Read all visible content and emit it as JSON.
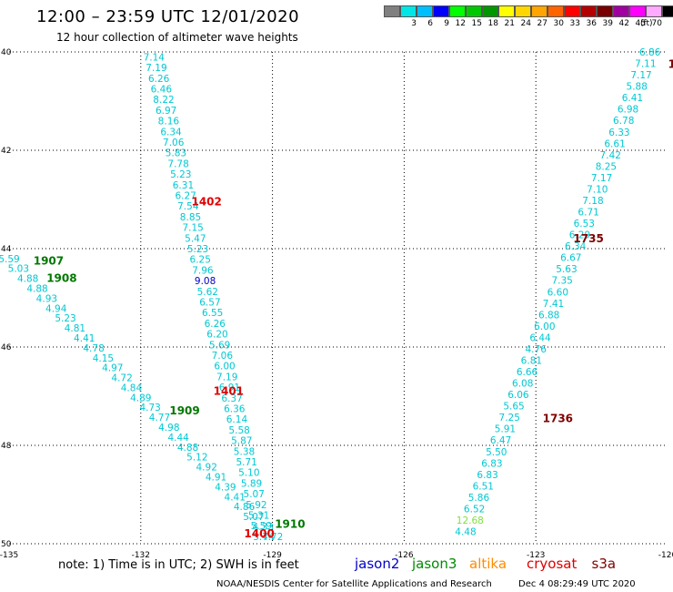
{
  "header": {
    "title": "12:00 – 23:59 UTC 12/01/2020",
    "subtitle": "12 hour collection of altimeter wave heights"
  },
  "legend": {
    "unit": "(ft)",
    "bins": [
      {
        "label": "",
        "color": "#808080"
      },
      {
        "label": "3",
        "color": "#00e5e5"
      },
      {
        "label": "6",
        "color": "#00bfff"
      },
      {
        "label": "9",
        "color": "#0000ff"
      },
      {
        "label": "12",
        "color": "#00ff00"
      },
      {
        "label": "15",
        "color": "#00c800"
      },
      {
        "label": "18",
        "color": "#009600"
      },
      {
        "label": "21",
        "color": "#ffff00"
      },
      {
        "label": "24",
        "color": "#ffd700"
      },
      {
        "label": "27",
        "color": "#ffa500"
      },
      {
        "label": "30",
        "color": "#ff6400"
      },
      {
        "label": "33",
        "color": "#ff0000"
      },
      {
        "label": "36",
        "color": "#b40000"
      },
      {
        "label": "39",
        "color": "#780000"
      },
      {
        "label": "42",
        "color": "#a000a0"
      },
      {
        "label": "45",
        "color": "#ff00ff"
      },
      {
        "label": "70",
        "color": "#ffaaff"
      },
      {
        "label": "",
        "color": "#000000"
      }
    ]
  },
  "axes": {
    "lon_ticks": [
      "-135",
      "-132",
      "-129",
      "-126",
      "-123",
      "-120"
    ],
    "lat_ticks": [
      "40",
      "42",
      "44",
      "46",
      "48",
      "50"
    ]
  },
  "passes": [
    {
      "id": "A",
      "color": "#00c8d2",
      "lon_start": -131.7,
      "lat_start": 40.1,
      "lon_end": -129.2,
      "lat_end": 49.85,
      "values": [
        "7.14",
        "7.19",
        "6.26",
        "6.46",
        "8.22",
        "6.97",
        "8.16",
        "6.34",
        "7.06",
        "5.83",
        "7.78",
        "5.23",
        "6.31",
        "6.27",
        "7.54",
        "8.85",
        "7.15",
        "5.47",
        "5.23",
        "6.25",
        "7.96",
        "9.08",
        "5.62",
        "6.57",
        "6.55",
        "6.26",
        "6.20",
        "5.69",
        "7.06",
        "6.00",
        "7.19",
        "6.91",
        "6.37",
        "6.36",
        "6.14",
        "5.58",
        "5.87",
        "5.38",
        "5.71",
        "5.10",
        "5.89",
        "5.07",
        "5.92",
        "5.31",
        "5.59",
        "5.74"
      ],
      "highlight": {
        "index": 21,
        "color": "#0000c8"
      }
    },
    {
      "id": "B",
      "color": "#00c8d2",
      "lon_start": -135.0,
      "lat_start": 44.2,
      "lon_end": -129.0,
      "lat_end": 49.85,
      "values": [
        "5.59",
        "5.03",
        "4.88",
        "4.88",
        "4.93",
        "4.94",
        "5.23",
        "4.81",
        "4.41",
        "4.78",
        "4.15",
        "4.97",
        "4.72",
        "4.84",
        "4.89",
        "4.73",
        "4.77",
        "4.98",
        "4.44",
        "4.88",
        "5.12",
        "4.92",
        "4.91",
        "4.39",
        "4.41",
        "4.86",
        "5.07",
        "4.33",
        "4.72"
      ]
    },
    {
      "id": "C",
      "color": "#00c8d2",
      "lon_start": -120.4,
      "lat_start": 40.0,
      "lon_end": -124.6,
      "lat_end": 49.75,
      "values": [
        "6.86",
        "7.11",
        "7.17",
        "5.88",
        "6.41",
        "6.98",
        "6.78",
        "6.33",
        "6.61",
        "7.42",
        "8.25",
        "7.17",
        "7.10",
        "7.18",
        "6.71",
        "6.53",
        "6.29",
        "6.34",
        "6.67",
        "5.63",
        "7.35",
        "6.60",
        "7.41",
        "6.88",
        "6.00",
        "6.44",
        "4.76",
        "6.81",
        "6.66",
        "6.08",
        "6.06",
        "5.65",
        "7.25",
        "5.91",
        "6.47",
        "5.50",
        "6.83",
        "6.83",
        "6.51",
        "5.86",
        "6.52",
        "12.68",
        "4.48"
      ],
      "highlight": {
        "index": 41,
        "color": "#80e040"
      }
    }
  ],
  "time_labels": [
    {
      "text": "1402",
      "lon": -130.5,
      "lat": 43.05,
      "color": "#e00000"
    },
    {
      "text": "1401",
      "lon": -130.0,
      "lat": 46.9,
      "color": "#e00000"
    },
    {
      "text": "1400",
      "lon": -129.3,
      "lat": 49.8,
      "color": "#e00000"
    },
    {
      "text": "1907",
      "lon": -134.1,
      "lat": 44.25,
      "color": "#007800"
    },
    {
      "text": "1908",
      "lon": -133.8,
      "lat": 44.6,
      "color": "#007800"
    },
    {
      "text": "1909",
      "lon": -131.0,
      "lat": 47.3,
      "color": "#007800"
    },
    {
      "text": "1910",
      "lon": -128.6,
      "lat": 49.6,
      "color": "#007800"
    },
    {
      "text": "1735",
      "lon": -121.8,
      "lat": 43.8,
      "color": "#800000"
    },
    {
      "text": "1736",
      "lon": -122.5,
      "lat": 47.45,
      "color": "#800000"
    },
    {
      "text": "1",
      "lon": -119.9,
      "lat": 40.25,
      "color": "#800000"
    }
  ],
  "note": "note:  1) Time is in UTC;  2) SWH is in feet",
  "satellites": [
    {
      "name": "jason2",
      "color": "#0000c8"
    },
    {
      "name": "jason3",
      "color": "#008c00"
    },
    {
      "name": "altika",
      "color": "#ff8c00"
    },
    {
      "name": "cryosat",
      "color": "#e00000"
    },
    {
      "name": "s3a",
      "color": "#800000"
    }
  ],
  "footer": {
    "credit": "NOAA/NESDIS Center for Satellite Applications and Research",
    "date": "Dec  4 08:29:49 UTC 2020"
  }
}
